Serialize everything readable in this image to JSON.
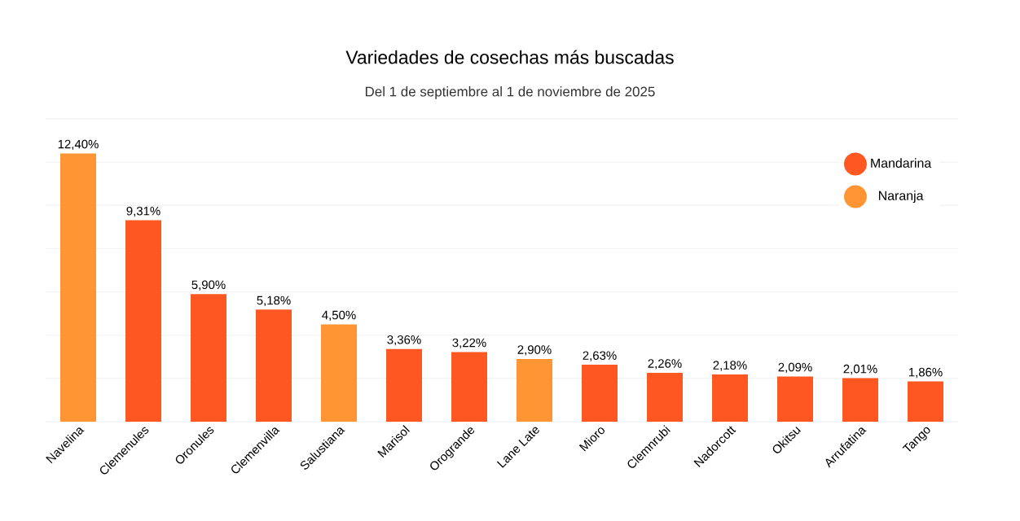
{
  "chart_data": {
    "type": "bar",
    "title": "Variedades de cosechas más buscadas",
    "subtitle": "Del 1 de septiembre al 1 de noviembre de 2025",
    "categories": [
      "Navelina",
      "Clemenules",
      "Oronules",
      "Clemenvilla",
      "Salustiana",
      "Marisol",
      "Orogrande",
      "Lane Late",
      "Mioro",
      "Clemnrubi",
      "Nadorcott",
      "Okitsu",
      "Arrufatina",
      "Tango"
    ],
    "series": [
      {
        "name": "Mandarina",
        "color": "#ff5722",
        "values": [
          null,
          9.31,
          5.9,
          5.18,
          null,
          3.36,
          3.22,
          null,
          2.63,
          2.26,
          2.18,
          2.09,
          2.01,
          1.86
        ],
        "value_labels": [
          null,
          "9,31%",
          "5,90%",
          "5,18%",
          null,
          "3,36%",
          "3,22%",
          null,
          "2,63%",
          "2,26%",
          "2,18%",
          "2,09%",
          "2,01%",
          "1,86%"
        ]
      },
      {
        "name": "Naranja",
        "color": "#ff9533",
        "values": [
          12.4,
          null,
          null,
          null,
          4.5,
          null,
          null,
          2.9,
          null,
          null,
          null,
          null,
          null,
          null
        ],
        "value_labels": [
          "12,40%",
          null,
          null,
          null,
          "4,50%",
          null,
          null,
          "2,90%",
          null,
          null,
          null,
          null,
          null,
          null
        ]
      }
    ],
    "ylim": [
      0,
      14
    ],
    "yticks": [
      {
        "value": 0,
        "label": null
      },
      {
        "value": 2,
        "label": null
      },
      {
        "value": 4,
        "label": null
      },
      {
        "value": 6,
        "label": null
      },
      {
        "value": 8,
        "label": null
      },
      {
        "value": 10,
        "label": null
      },
      {
        "value": 12,
        "label": null
      },
      {
        "value": 14,
        "label": null
      }
    ],
    "grid": "y",
    "legend": "top right",
    "tick_labels": "x"
  }
}
